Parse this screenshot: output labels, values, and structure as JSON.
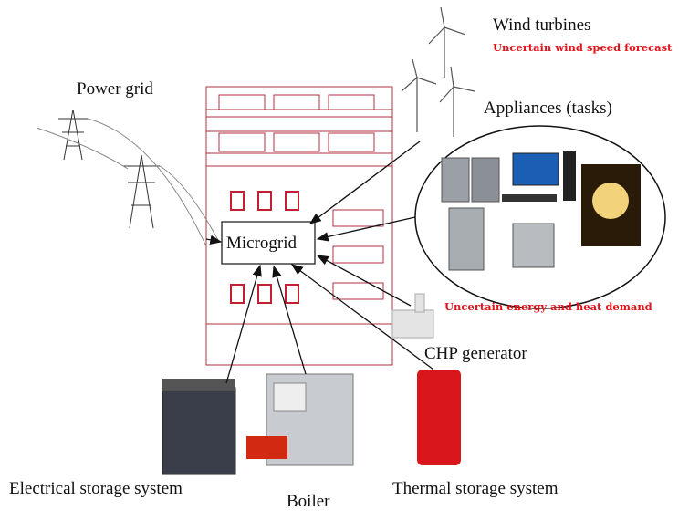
{
  "nodes": [
    {
      "label": "Wind turbines"
    },
    {
      "label": "Power grid"
    },
    {
      "label": "Appliances (tasks)"
    },
    {
      "label": "Microgrid"
    },
    {
      "label": "CHP generator"
    },
    {
      "label": "Electrical storage system"
    },
    {
      "label": "Boiler"
    },
    {
      "label": "Thermal storage system"
    }
  ],
  "annotations": [
    {
      "text": "Uncertain wind speed forecast"
    },
    {
      "text": "Uncertain energy and heat demand"
    }
  ]
}
